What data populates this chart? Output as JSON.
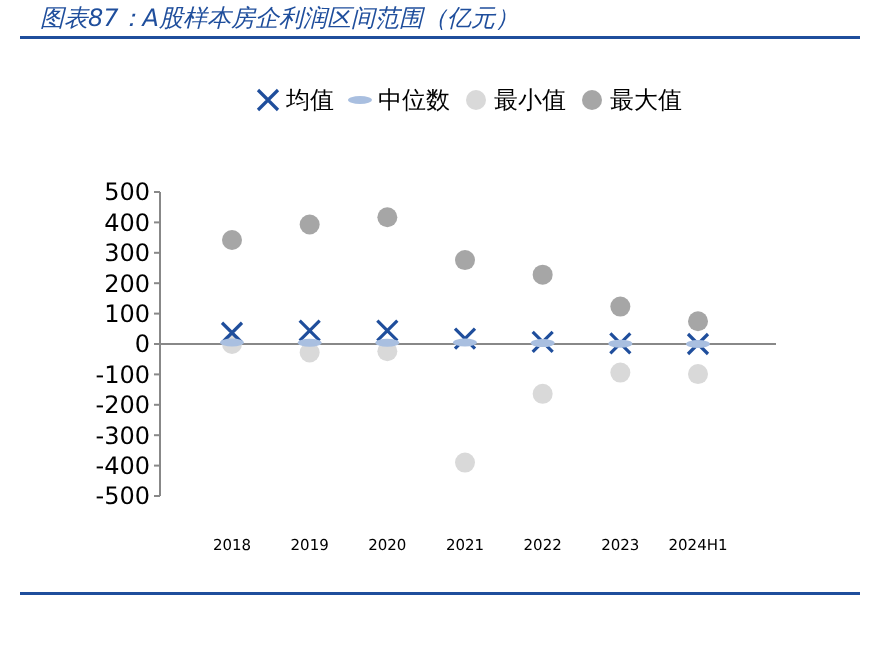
{
  "chart_data": {
    "type": "scatter",
    "title": "图表87：A股样本房企利润区间范围（亿元）",
    "categories": [
      "2018",
      "2019",
      "2020",
      "2021",
      "2022",
      "2023",
      "2024H1"
    ],
    "ylim": [
      -500,
      500
    ],
    "yticks": [
      -500,
      -400,
      -300,
      -200,
      -100,
      0,
      100,
      200,
      300,
      400,
      500
    ],
    "legend": "top",
    "series": [
      {
        "name": "均值",
        "color": "#1f4e9c",
        "marker": "cross",
        "values": [
          37,
          44,
          44,
          18,
          7,
          2,
          0
        ]
      },
      {
        "name": "中位数",
        "color": "#a9bfe0",
        "values": [
          5,
          4,
          4,
          5,
          3,
          1,
          0
        ]
      },
      {
        "name": "最小值",
        "color": "#d9d9d9",
        "marker": "circle",
        "values": [
          0,
          -28,
          -24,
          -390,
          -164,
          -94,
          -99
        ]
      },
      {
        "name": "最大值",
        "color": "#a6a6a6",
        "marker": "circle",
        "values": [
          342,
          393,
          417,
          276,
          228,
          123,
          75
        ]
      }
    ]
  }
}
